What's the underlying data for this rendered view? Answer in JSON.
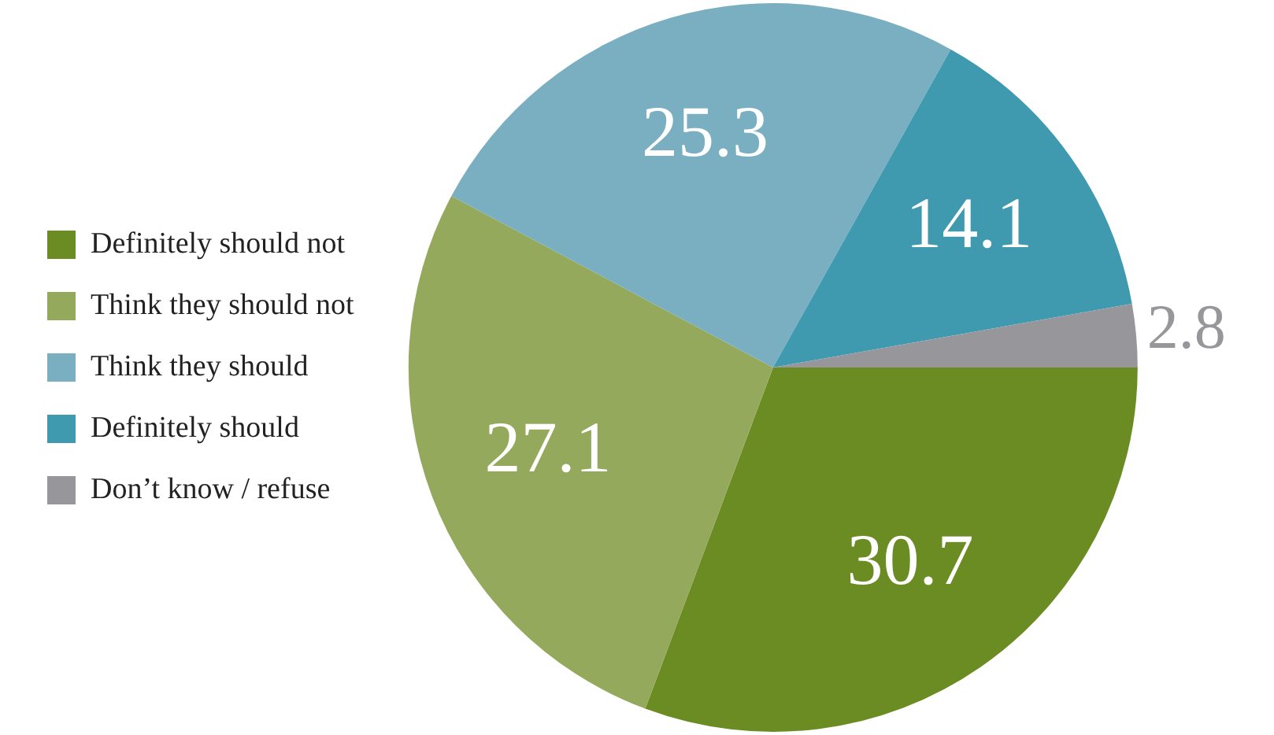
{
  "chart_data": {
    "type": "pie",
    "categories": [
      "Definitely should not",
      "Think they should not",
      "Think they should",
      "Definitely should",
      "Don’t know / refuse"
    ],
    "values": [
      30.7,
      27.1,
      25.3,
      14.1,
      2.8
    ],
    "colors": [
      "#6a8c23",
      "#94a95c",
      "#79afc0",
      "#3f9ab0",
      "#97979b"
    ],
    "data_labels": true,
    "legend": "left"
  }
}
